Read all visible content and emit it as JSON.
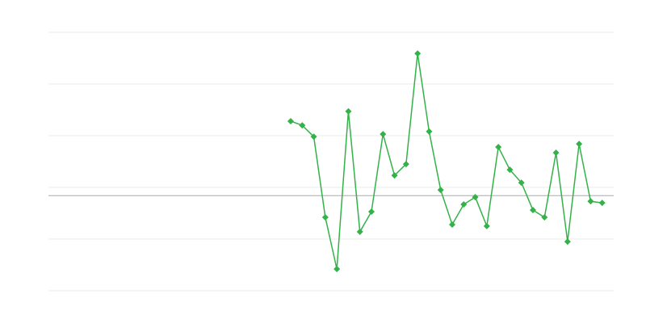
{
  "chart_data": {
    "type": "line",
    "title": "",
    "xlabel": "",
    "ylabel": "",
    "xlim": [
      0,
      49
    ],
    "ylim": [
      0,
      5
    ],
    "grid": true,
    "reference_line": 1.84,
    "x": [
      21,
      22,
      23,
      24,
      25,
      26,
      27,
      28,
      29,
      30,
      31,
      32,
      33,
      34,
      35,
      36,
      37,
      38,
      39,
      40,
      41,
      42,
      43,
      44,
      45,
      46,
      47,
      48
    ],
    "series": [
      {
        "values": [
          3.28,
          3.2,
          2.98,
          1.42,
          0.42,
          3.47,
          1.14,
          1.53,
          3.03,
          2.23,
          2.45,
          4.59,
          3.08,
          1.95,
          1.28,
          1.67,
          1.81,
          1.25,
          2.78,
          2.34,
          2.09,
          1.56,
          1.42,
          2.67,
          0.95,
          2.84,
          1.73,
          1.7
        ],
        "color": "#33b249",
        "marker": "diamond"
      }
    ],
    "colors": {
      "grid": "#ebebeb",
      "reference_line": "#aaaaaa"
    }
  }
}
